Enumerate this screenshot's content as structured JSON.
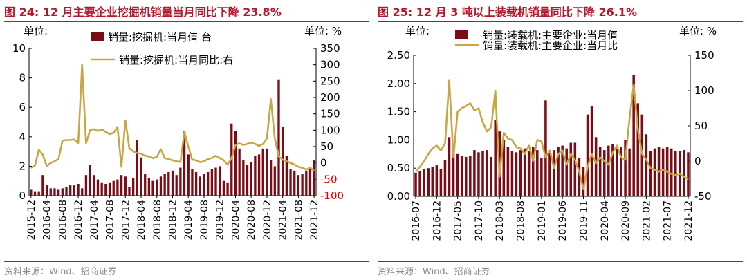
{
  "source": "资料来源：Wind、招商证券",
  "colors": {
    "accent": "#b5182c",
    "bar": "#7b0c16",
    "line": "#c9a545",
    "negative_tick": "#e00000",
    "text": "#000000"
  },
  "chart_data": [
    {
      "type": "bar",
      "title": "图 24:  12 月主要企业挖掘机销量当月同比下降 23.8%",
      "left_unit": "单位:",
      "right_unit": "单位:   %",
      "grid": false,
      "legend_position": "top",
      "x_ticks": [
        "2015-12",
        "2016-04",
        "2016-08",
        "2016-12",
        "2017-04",
        "2017-08",
        "2017-12",
        "2018-04",
        "2018-08",
        "2018-12",
        "2019-04",
        "2019-08",
        "2019-12",
        "2020-04",
        "2020-08",
        "2020-12",
        "2021-04",
        "2021-08",
        "2021-12"
      ],
      "x": [
        "2015-12",
        "2016-01",
        "2016-02",
        "2016-03",
        "2016-04",
        "2016-05",
        "2016-06",
        "2016-07",
        "2016-08",
        "2016-09",
        "2016-10",
        "2016-11",
        "2016-12",
        "2017-01",
        "2017-02",
        "2017-03",
        "2017-04",
        "2017-05",
        "2017-06",
        "2017-07",
        "2017-08",
        "2017-09",
        "2017-10",
        "2017-11",
        "2017-12",
        "2018-01",
        "2018-02",
        "2018-03",
        "2018-04",
        "2018-05",
        "2018-06",
        "2018-07",
        "2018-08",
        "2018-09",
        "2018-10",
        "2018-11",
        "2018-12",
        "2019-01",
        "2019-02",
        "2019-03",
        "2019-04",
        "2019-05",
        "2019-06",
        "2019-07",
        "2019-08",
        "2019-09",
        "2019-10",
        "2019-11",
        "2019-12",
        "2020-01",
        "2020-02",
        "2020-03",
        "2020-04",
        "2020-05",
        "2020-06",
        "2020-07",
        "2020-08",
        "2020-09",
        "2020-10",
        "2020-11",
        "2020-12",
        "2021-01",
        "2021-02",
        "2021-03",
        "2021-04",
        "2021-05",
        "2021-06",
        "2021-07",
        "2021-08",
        "2021-09",
        "2021-10",
        "2021-11",
        "2021-12"
      ],
      "left_axis": {
        "ylim": [
          0,
          10
        ],
        "ticks": [
          "0",
          "2",
          "4",
          "6",
          "8",
          "10"
        ]
      },
      "right_axis": {
        "ylim": [
          -100,
          350
        ],
        "ticks": [
          "-100",
          "-50",
          "0",
          "50",
          "100",
          "150",
          "200",
          "250",
          "300",
          "350"
        ],
        "negative_ticks": [
          "-100",
          "-50"
        ]
      },
      "series": [
        {
          "name": "销量:挖掘机:当月值 台",
          "type": "bar",
          "axis": "left",
          "values": [
            0.4,
            0.3,
            0.3,
            1.4,
            0.7,
            0.5,
            0.5,
            0.4,
            0.5,
            0.6,
            0.7,
            0.7,
            0.8,
            0.5,
            1.4,
            2.1,
            1.4,
            1.1,
            0.9,
            0.8,
            0.9,
            1.0,
            1.1,
            1.4,
            1.3,
            0.6,
            1.2,
            3.8,
            2.6,
            1.5,
            1.2,
            1.0,
            1.1,
            1.3,
            1.5,
            1.6,
            1.7,
            1.4,
            1.9,
            4.4,
            2.8,
            1.8,
            1.6,
            1.3,
            1.5,
            1.6,
            1.8,
            1.9,
            2.0,
            1.0,
            0.9,
            4.9,
            4.4,
            3.2,
            2.4,
            2.1,
            2.3,
            2.7,
            2.8,
            3.2,
            3.2,
            2.4,
            2.0,
            7.9,
            4.7,
            2.7,
            1.8,
            1.7,
            1.4,
            1.5,
            1.7,
            1.9,
            2.4
          ]
        },
        {
          "name": "销量:挖掘机:当月同比:右",
          "type": "line",
          "axis": "right",
          "values": [
            -15,
            -8,
            40,
            25,
            -10,
            0,
            5,
            12,
            68,
            70,
            70,
            72,
            60,
            300,
            60,
            100,
            103,
            98,
            102,
            95,
            88,
            92,
            110,
            -12,
            130,
            45,
            35,
            30,
            28,
            22,
            20,
            15,
            18,
            42,
            15,
            12,
            8,
            5,
            3,
            95,
            50,
            10,
            8,
            2,
            5,
            12,
            15,
            22,
            15,
            8,
            -5,
            15,
            55,
            60,
            55,
            58,
            62,
            58,
            52,
            58,
            75,
            195,
            75,
            20,
            10,
            5,
            0,
            -5,
            -12,
            -15,
            -20,
            -15,
            -23.8
          ]
        }
      ]
    },
    {
      "type": "bar",
      "title": "图 25:  12 月 3 吨以上装载机销量同比下降 26.1%",
      "left_unit": "单位:",
      "right_unit": "单位:   %",
      "grid": false,
      "legend_position": "top",
      "x_ticks": [
        "2016-07",
        "2016-12",
        "2017-05",
        "2017-10",
        "2018-03",
        "2018-08",
        "2019-01",
        "2019-06",
        "2019-11",
        "2020-04",
        "2020-09",
        "2021-02",
        "2021-07",
        "2021-12"
      ],
      "x": [
        "2016-07",
        "2016-08",
        "2016-09",
        "2016-10",
        "2016-11",
        "2016-12",
        "2017-01",
        "2017-02",
        "2017-03",
        "2017-04",
        "2017-05",
        "2017-06",
        "2017-07",
        "2017-08",
        "2017-09",
        "2017-10",
        "2017-11",
        "2017-12",
        "2018-01",
        "2018-02",
        "2018-03",
        "2018-04",
        "2018-05",
        "2018-06",
        "2018-07",
        "2018-08",
        "2018-09",
        "2018-10",
        "2018-11",
        "2018-12",
        "2019-01",
        "2019-02",
        "2019-03",
        "2019-04",
        "2019-05",
        "2019-06",
        "2019-07",
        "2019-08",
        "2019-09",
        "2019-10",
        "2019-11",
        "2019-12",
        "2020-01",
        "2020-02",
        "2020-03",
        "2020-04",
        "2020-05",
        "2020-06",
        "2020-07",
        "2020-08",
        "2020-09",
        "2020-10",
        "2020-11",
        "2020-12",
        "2021-01",
        "2021-02",
        "2021-03",
        "2021-04",
        "2021-05",
        "2021-06",
        "2021-07",
        "2021-08",
        "2021-09",
        "2021-10",
        "2021-11",
        "2021-12"
      ],
      "left_axis": {
        "ylim": [
          0,
          2.5
        ],
        "ticks": [
          "0.00",
          "0.50",
          "1.00",
          "1.50",
          "2.00",
          "2.50"
        ]
      },
      "right_axis": {
        "ylim": [
          -50,
          150
        ],
        "ticks": [
          "-50",
          "0",
          "50",
          "100",
          "150"
        ],
        "negative_ticks": []
      },
      "series": [
        {
          "name": "销量:装载机:主要企业:当月值",
          "type": "bar",
          "axis": "left",
          "values": [
            0.42,
            0.45,
            0.48,
            0.5,
            0.52,
            0.55,
            0.48,
            0.65,
            1.05,
            0.82,
            0.75,
            0.72,
            0.7,
            0.72,
            0.82,
            0.78,
            0.8,
            0.82,
            0.7,
            1.35,
            1.15,
            1.0,
            0.88,
            0.8,
            0.78,
            0.82,
            0.85,
            0.8,
            0.88,
            0.82,
            0.68,
            1.7,
            0.8,
            0.82,
            0.88,
            0.9,
            0.85,
            0.95,
            0.95,
            0.68,
            0.52,
            1.45,
            1.6,
            1.05,
            0.88,
            0.82,
            0.9,
            0.92,
            0.85,
            0.88,
            1.0,
            0.85,
            2.15,
            1.65,
            1.45,
            1.1,
            0.8,
            0.85,
            0.88,
            0.85,
            0.88,
            0.85,
            0.8,
            0.8,
            0.82,
            0.78
          ]
        },
        {
          "name": "销量:装载机:主要企业:当月比",
          "type": "line",
          "axis": "right",
          "values": [
            -15,
            -8,
            0,
            10,
            18,
            22,
            15,
            25,
            115,
            5,
            70,
            75,
            78,
            82,
            72,
            75,
            55,
            42,
            48,
            100,
            -22,
            40,
            32,
            30,
            20,
            18,
            10,
            22,
            0,
            30,
            28,
            5,
            15,
            -10,
            10,
            15,
            -5,
            10,
            2,
            -15,
            -40,
            -8,
            10,
            -3,
            5,
            0,
            -5,
            12,
            22,
            5,
            2,
            60,
            108,
            45,
            10,
            2,
            -10,
            -12,
            -15,
            -12,
            -15,
            -18,
            -20,
            -18,
            -22,
            -26.1
          ]
        }
      ]
    }
  ]
}
